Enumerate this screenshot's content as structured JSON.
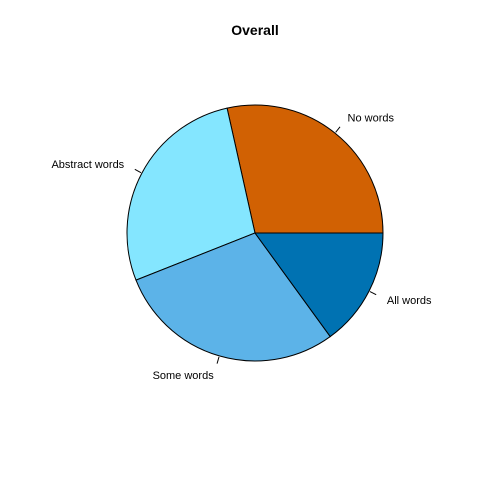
{
  "chart_data": {
    "type": "pie",
    "title": "Overall",
    "start_angle_deg": 0,
    "direction": "counterclockwise",
    "slices": [
      {
        "label": "No words",
        "value": 0.285,
        "color": "#D16103"
      },
      {
        "label": "Abstract words",
        "value": 0.275,
        "color": "#84E6FF"
      },
      {
        "label": "Some words",
        "value": 0.29,
        "color": "#5CB3E8"
      },
      {
        "label": "All words",
        "value": 0.15,
        "color": "#0072B2"
      }
    ]
  }
}
